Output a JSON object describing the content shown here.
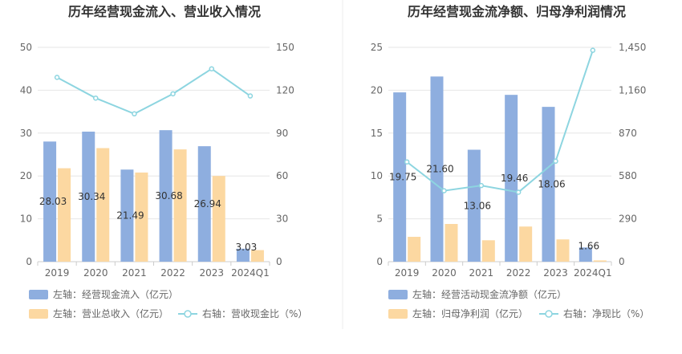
{
  "chart_data": [
    {
      "type": "bar",
      "title": "历年经营现金流入、营业收入情况",
      "categories": [
        "2019",
        "2020",
        "2021",
        "2022",
        "2023",
        "2024Q1"
      ],
      "y_left": {
        "ylim": [
          0,
          50
        ],
        "ticks": [
          "0",
          "10",
          "20",
          "30",
          "40",
          "50"
        ]
      },
      "y_right": {
        "ylim": [
          0,
          150
        ],
        "ticks": [
          "0",
          "30",
          "60",
          "90",
          "120",
          "150"
        ]
      },
      "series": [
        {
          "name": "左轴：经营现金流入（亿元）",
          "kind": "bar",
          "axis": "left",
          "color": "#8eaedf",
          "values": [
            28.03,
            30.34,
            21.49,
            30.68,
            26.94,
            3.03
          ],
          "labels": [
            "28.03",
            "30.34",
            "21.49",
            "30.68",
            "26.94",
            "3.03"
          ]
        },
        {
          "name": "左轴：营业总收入（亿元）",
          "kind": "bar",
          "axis": "left",
          "color": "#fcd8a1",
          "values": [
            21.8,
            26.5,
            20.8,
            26.2,
            20.0,
            2.7
          ]
        },
        {
          "name": "右轴：营收现金比（%）",
          "kind": "line",
          "axis": "right",
          "color": "#8dd5e0",
          "values": [
            129,
            114.5,
            103.5,
            117.5,
            135,
            116
          ]
        }
      ]
    },
    {
      "type": "bar",
      "title": "历年经营现金流净额、归母净利润情况",
      "categories": [
        "2019",
        "2020",
        "2021",
        "2022",
        "2023",
        "2024Q1"
      ],
      "y_left": {
        "ylim": [
          0,
          25
        ],
        "ticks": [
          "0",
          "5",
          "10",
          "15",
          "20",
          "25"
        ]
      },
      "y_right": {
        "ylim": [
          0,
          1450
        ],
        "ticks": [
          "0",
          "290",
          "580",
          "870",
          "1,160",
          "1,450"
        ]
      },
      "series": [
        {
          "name": "左轴：经营活动现金流净额（亿元）",
          "kind": "bar",
          "axis": "left",
          "color": "#8eaedf",
          "values": [
            19.75,
            21.6,
            13.06,
            19.46,
            18.06,
            1.66
          ],
          "labels": [
            "19.75",
            "21.60",
            "13.06",
            "19.46",
            "18.06",
            "1.66"
          ]
        },
        {
          "name": "左轴：归母净利润（亿元）",
          "kind": "bar",
          "axis": "left",
          "color": "#fcd8a1",
          "values": [
            2.9,
            4.4,
            2.5,
            4.1,
            2.6,
            0.15
          ]
        },
        {
          "name": "右轴：净现比（%）",
          "kind": "line",
          "axis": "right",
          "color": "#8dd5e0",
          "values": [
            675,
            480,
            515,
            470,
            680,
            1430
          ]
        }
      ]
    }
  ]
}
